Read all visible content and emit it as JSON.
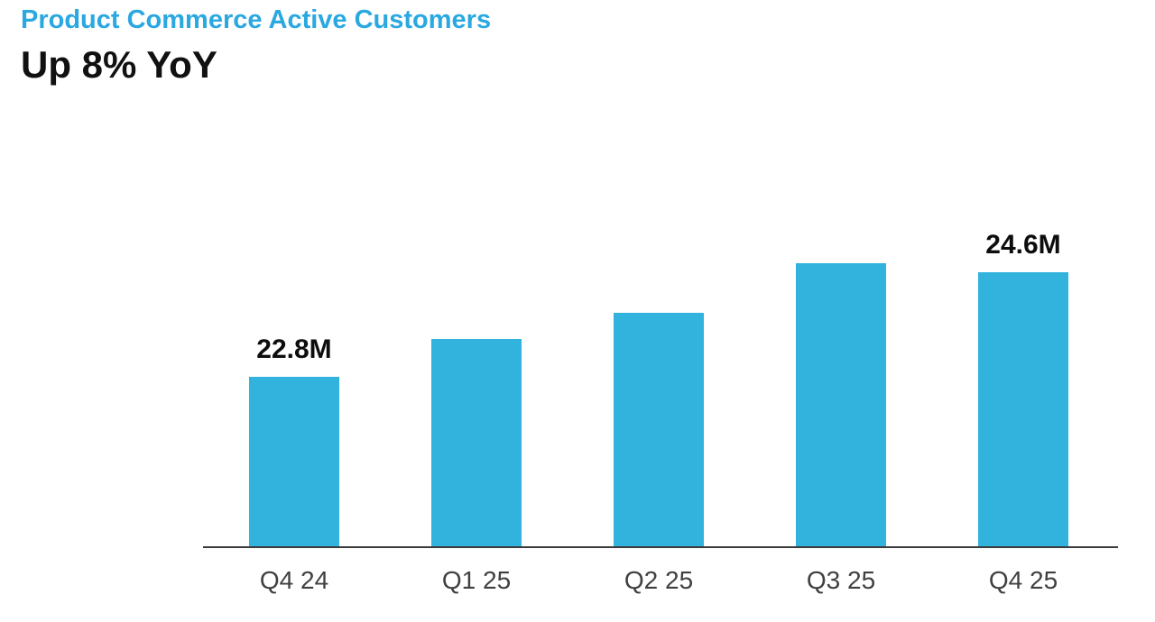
{
  "header": {
    "title": "Product Commerce Active Customers",
    "subtitle": "Up 8% YoY",
    "title_color": "#2aa8e0",
    "subtitle_color": "#111111"
  },
  "chart_data": {
    "type": "bar",
    "title": "Product Commerce Active Customers",
    "subtitle": "Up 8% YoY",
    "categories": [
      "Q4 24",
      "Q1 25",
      "Q2 25",
      "Q3 25",
      "Q4 25"
    ],
    "values": [
      22.8,
      23.45,
      23.9,
      24.75,
      24.6
    ],
    "unit": "M customers",
    "data_labels": [
      "22.8M",
      "",
      "",
      "",
      "24.6M"
    ],
    "labeled_points": {
      "Q4 24": "22.8M",
      "Q4 25": "24.6M"
    },
    "ylim": [
      19.9,
      25.0
    ],
    "xlabel": "",
    "ylabel": "",
    "grid": false,
    "legend": "none",
    "bar_color": "#31b3de",
    "axis_color": "#3b3b3b",
    "category_label_color": "#404040",
    "value_label_color": "#0d0d0d"
  }
}
